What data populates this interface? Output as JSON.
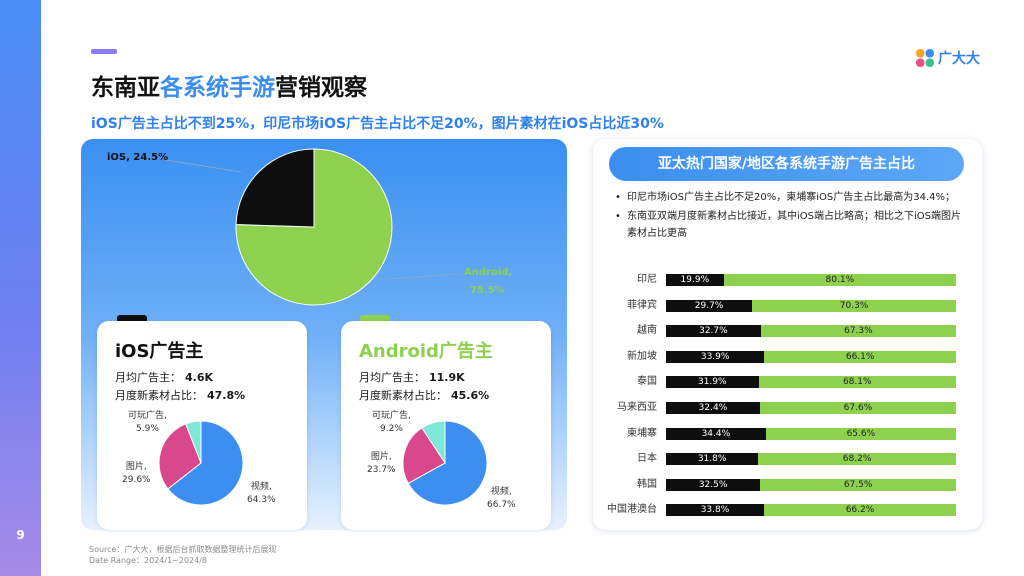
{
  "page_number": "9",
  "title_parts": [
    "东南亚",
    "各系统手游",
    "营销观察"
  ],
  "subtitle": "iOS广告主占比不到25%，印尼市场iOS广告主占比不足20%，图片素材在iOS占比近30%",
  "logo_text": "广大大",
  "colors": {
    "ios": "#0e0e0e",
    "android": "#8dd14f",
    "video": "#3c8ff0",
    "image": "#d9478c",
    "playable": "#7ee8d8",
    "accent": "#3b8ef0"
  },
  "main_pie_labels": {
    "ios": "iOS, 24.5%",
    "android_line1": "Android,",
    "android_line2": "75.5%"
  },
  "cards": {
    "ios": {
      "title": "iOS广告主",
      "line1_label": "月均广告主：",
      "line1_value": "4.6K",
      "line2_label": "月度新素材占比：",
      "line2_value": "47.8%",
      "labels": {
        "playable_1": "可玩广告,",
        "playable_2": "5.9%",
        "image_1": "图片,",
        "image_2": "29.6%",
        "video_1": "视频,",
        "video_2": "64.3%"
      }
    },
    "android": {
      "title": "Android广告主",
      "line1_label": "月均广告主：",
      "line1_value": "11.9K",
      "line2_label": "月度新素材占比：",
      "line2_value": "45.6%",
      "labels": {
        "playable_1": "可玩广告,",
        "playable_2": "9.2%",
        "image_1": "图片,",
        "image_2": "23.7%",
        "video_1": "视频,",
        "video_2": "66.7%"
      }
    }
  },
  "right_panel": {
    "header": "亚太热门国家/地区各系统手游广告主占比",
    "bullets": [
      "印尼市场iOS广告主占比不足20%，柬埔寨iOS广告主占比最高为34.4%；",
      "东南亚双端月度新素材占比接近，其中iOS端占比略高；相比之下iOS端图片素材占比更高"
    ]
  },
  "source_line1": "Source：广大大，根据后台抓取数据整理统计后展现",
  "source_line2": "Date Range：2024/1~2024/8",
  "chart_data": [
    {
      "type": "pie",
      "title": "",
      "slices": [
        {
          "name": "iOS",
          "value": 24.5
        },
        {
          "name": "Android",
          "value": 75.5
        }
      ]
    },
    {
      "type": "pie",
      "title": "iOS广告主",
      "slices": [
        {
          "name": "视频",
          "value": 64.3
        },
        {
          "name": "图片",
          "value": 29.6
        },
        {
          "name": "可玩广告",
          "value": 5.9
        }
      ]
    },
    {
      "type": "pie",
      "title": "Android广告主",
      "slices": [
        {
          "name": "视频",
          "value": 66.7
        },
        {
          "name": "图片",
          "value": 23.7
        },
        {
          "name": "可玩广告",
          "value": 9.2
        }
      ]
    },
    {
      "type": "bar",
      "title": "亚太热门国家/地区各系统手游广告主占比",
      "stacked": true,
      "orientation": "horizontal",
      "categories": [
        "印尼",
        "菲律宾",
        "越南",
        "新加坡",
        "泰国",
        "马来西亚",
        "柬埔寨",
        "日本",
        "韩国",
        "中国港澳台"
      ],
      "series": [
        {
          "name": "iOS",
          "values": [
            19.9,
            29.7,
            32.7,
            33.9,
            31.9,
            32.4,
            34.4,
            31.8,
            32.5,
            33.8
          ]
        },
        {
          "name": "Android",
          "values": [
            80.1,
            70.3,
            67.3,
            66.1,
            68.1,
            67.6,
            65.6,
            68.2,
            67.5,
            66.2
          ]
        }
      ]
    }
  ]
}
